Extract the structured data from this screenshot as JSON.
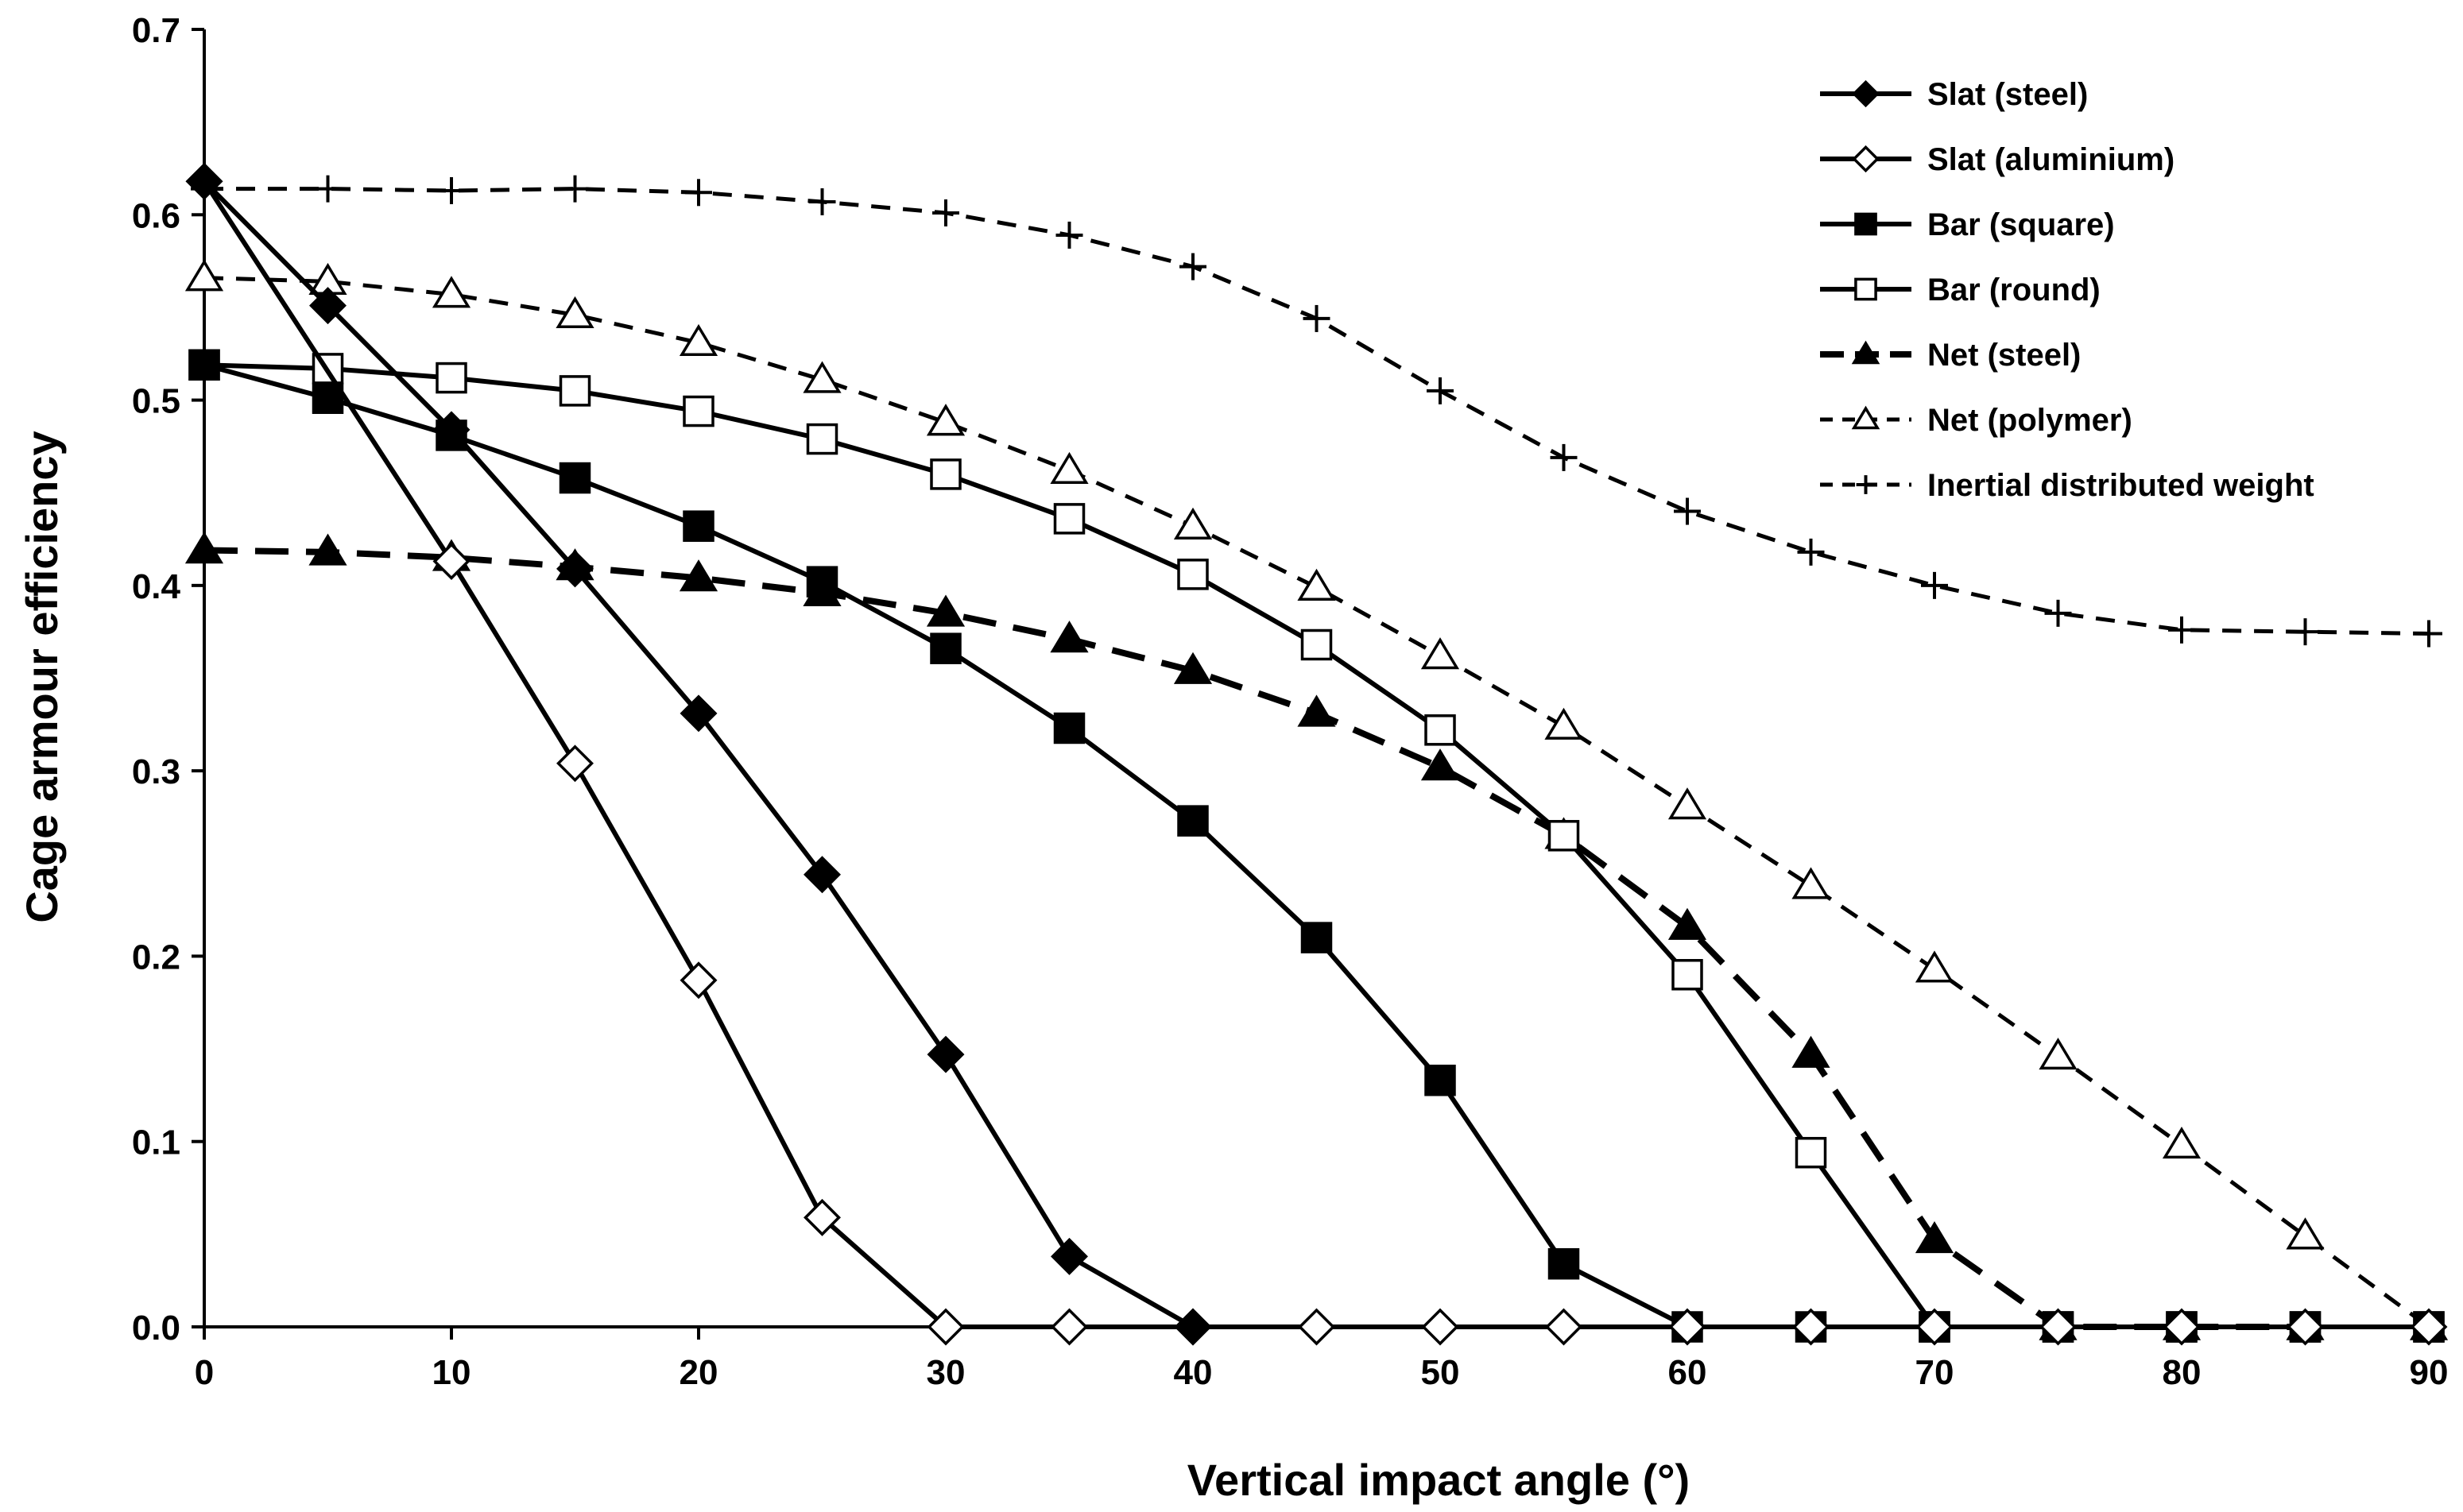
{
  "chart_data": {
    "type": "line",
    "title": "",
    "xlabel": "Vertical impact angle (°)",
    "ylabel": "Cage armour efficiency",
    "xlim": [
      0,
      90
    ],
    "ylim": [
      0,
      0.7
    ],
    "xticks": [
      0,
      10,
      20,
      30,
      40,
      50,
      60,
      70,
      80,
      90
    ],
    "xtick_labels": [
      "0",
      "10",
      "20",
      "30",
      "40",
      "50",
      "60",
      "70",
      "80",
      "90"
    ],
    "yticks": [
      0,
      0.1,
      0.2,
      0.3,
      0.4,
      0.5,
      0.6,
      0.7
    ],
    "ytick_labels": [
      "0.0",
      "0.1",
      "0.2",
      "0.3",
      "0.4",
      "0.5",
      "0.6",
      "0.7"
    ],
    "grid": false,
    "legend_position": "top-right",
    "series": [
      {
        "name": "Slat (steel)",
        "marker": "diamond-filled",
        "dash": "solid",
        "x": [
          0,
          5,
          10,
          15,
          20,
          25,
          30,
          35,
          40
        ],
        "y": [
          0.618,
          0.551,
          0.484,
          0.409,
          0.331,
          0.244,
          0.147,
          0.038,
          0.0
        ]
      },
      {
        "name": "Slat (aluminium)",
        "marker": "diamond-open",
        "dash": "solid",
        "x": [
          0,
          10,
          15,
          20,
          25,
          30,
          35,
          40,
          45,
          50,
          55,
          60,
          65,
          70,
          75,
          80,
          85,
          90
        ],
        "y": [
          0.618,
          0.413,
          0.304,
          0.187,
          0.059,
          0.0,
          0.0,
          0.0,
          0.0,
          0.0,
          0.0,
          0.0,
          0.0,
          0.0,
          0.0,
          0.0,
          0.0,
          0.0
        ]
      },
      {
        "name": "Bar (square)",
        "marker": "square-filled",
        "dash": "solid",
        "x": [
          0,
          5,
          10,
          15,
          20,
          25,
          30,
          35,
          40,
          45,
          50,
          55,
          60,
          65,
          70,
          75,
          80,
          85,
          90
        ],
        "y": [
          0.519,
          0.501,
          0.481,
          0.458,
          0.432,
          0.402,
          0.366,
          0.323,
          0.273,
          0.21,
          0.133,
          0.034,
          0.0,
          0.0,
          0.0,
          0.0,
          0.0,
          0.0,
          0.0
        ]
      },
      {
        "name": "Bar (round)",
        "marker": "square-open",
        "dash": "solid",
        "x": [
          0,
          5,
          10,
          15,
          20,
          25,
          30,
          35,
          40,
          45,
          50,
          55,
          60,
          65,
          70,
          75,
          80,
          85,
          90
        ],
        "y": [
          0.519,
          0.517,
          0.512,
          0.505,
          0.494,
          0.479,
          0.46,
          0.436,
          0.406,
          0.368,
          0.322,
          0.265,
          0.19,
          0.094,
          0.0,
          0.0,
          0.0,
          0.0,
          0.0
        ]
      },
      {
        "name": "Net (steel)",
        "marker": "triangle-filled",
        "dash": "long-dash",
        "x": [
          0,
          5,
          10,
          15,
          20,
          25,
          30,
          35,
          40,
          45,
          50,
          55,
          60,
          65,
          70,
          75,
          80,
          85
        ],
        "y": [
          0.419,
          0.418,
          0.415,
          0.41,
          0.404,
          0.396,
          0.385,
          0.371,
          0.354,
          0.331,
          0.302,
          0.265,
          0.216,
          0.147,
          0.047,
          0.0,
          0.0,
          0.0
        ]
      },
      {
        "name": "Net (polymer)",
        "marker": "triangle-open",
        "dash": "short-dash",
        "x": [
          0,
          5,
          10,
          15,
          20,
          25,
          30,
          35,
          40,
          45,
          50,
          55,
          60,
          65,
          70,
          75,
          80,
          85,
          90
        ],
        "y": [
          0.566,
          0.564,
          0.557,
          0.546,
          0.531,
          0.511,
          0.488,
          0.462,
          0.432,
          0.399,
          0.362,
          0.324,
          0.281,
          0.238,
          0.193,
          0.146,
          0.098,
          0.049,
          0.0
        ]
      },
      {
        "name": "Inertial distributed weight",
        "marker": "plus",
        "dash": "short-dash",
        "x": [
          0,
          5,
          10,
          15,
          20,
          25,
          30,
          35,
          40,
          45,
          50,
          55,
          60,
          65,
          70,
          75,
          80,
          85,
          90
        ],
        "y": [
          0.614,
          0.614,
          0.613,
          0.614,
          0.612,
          0.607,
          0.601,
          0.589,
          0.572,
          0.544,
          0.505,
          0.469,
          0.44,
          0.418,
          0.4,
          0.385,
          0.376,
          0.375,
          0.374
        ]
      }
    ]
  }
}
